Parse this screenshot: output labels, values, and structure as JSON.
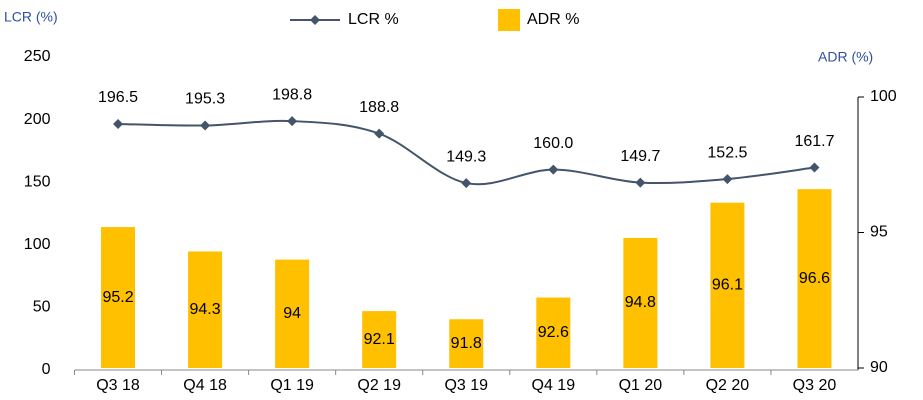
{
  "chart_data": {
    "type": "combo",
    "y_label": "LCR (%)",
    "y2_label": "ADR (%)",
    "categories": [
      "Q3 18",
      "Q4 18",
      "Q1 19",
      "Q2 19",
      "Q3 19",
      "Q4 19",
      "Q1 20",
      "Q2 20",
      "Q3 20"
    ],
    "series": [
      {
        "name": "LCR %",
        "type": "line",
        "color": "#44546a",
        "values": [
          196.5,
          195.3,
          198.8,
          188.8,
          149.3,
          160.0,
          149.7,
          152.5,
          161.7
        ],
        "value_labels": [
          "196.5",
          "195.3",
          "198.8",
          "188.8",
          "149.3",
          "160.0",
          "149.7",
          "152.5",
          "161.7"
        ]
      },
      {
        "name": "ADR %",
        "type": "bar",
        "axis": "y2",
        "color": "#ffc000",
        "values": [
          95.2,
          94.3,
          94.0,
          92.1,
          91.8,
          92.6,
          94.8,
          96.1,
          96.6
        ]
      }
    ],
    "ylim": [
      0,
      250
    ],
    "yticks": [
      0,
      50,
      100,
      150,
      200,
      250
    ],
    "y2lim": [
      90,
      100
    ],
    "y2ticks": [
      90,
      95,
      100
    ],
    "grid": false,
    "legend": "top"
  }
}
